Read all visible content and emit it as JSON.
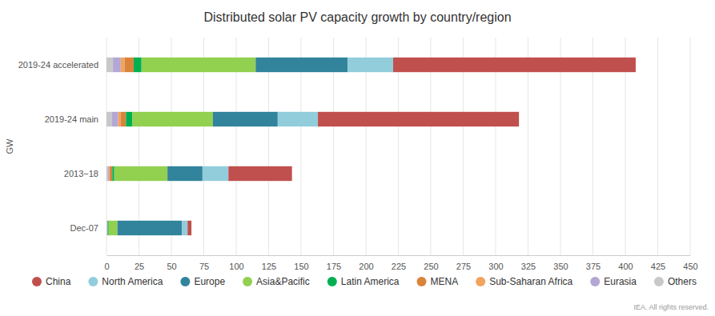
{
  "chart_data": {
    "type": "bar",
    "orientation": "horizontal",
    "stacked": true,
    "grid": true,
    "legend": "bottom",
    "title": "Distributed solar PV capacity growth by country/region",
    "ylabel": "GW",
    "annotations": [
      "IEA. All rights reserved."
    ],
    "categories": [
      "2019-24 accelerated",
      "2019-24 main",
      "2013−18",
      "Dec-07"
    ],
    "xlim": [
      0,
      450
    ],
    "xticks": [
      0,
      25,
      50,
      75,
      100,
      125,
      150,
      175,
      200,
      225,
      250,
      275,
      300,
      325,
      350,
      375,
      400,
      425,
      450
    ],
    "series": [
      {
        "name": "China",
        "color": "#c0504d",
        "values": [
          187,
          155,
          49,
          3
        ]
      },
      {
        "name": "North America",
        "color": "#92cddc",
        "values": [
          35,
          31,
          20,
          4.5
        ]
      },
      {
        "name": "Europe",
        "color": "#31849b",
        "values": [
          71,
          50,
          27,
          49.5
        ]
      },
      {
        "name": "Asia&Pacific",
        "color": "#92d050",
        "values": [
          88,
          62,
          41,
          6.8
        ]
      },
      {
        "name": "Latin America",
        "color": "#00b050",
        "values": [
          6,
          5,
          1.5,
          0.8
        ]
      },
      {
        "name": "MENA",
        "color": "#d9843b",
        "values": [
          7,
          4,
          2,
          0.2
        ]
      },
      {
        "name": "Sub-Saharan Africa",
        "color": "#f2a35e",
        "values": [
          3,
          2,
          0.5,
          0
        ]
      },
      {
        "name": "Eurasia",
        "color": "#b4a7d6",
        "values": [
          6,
          5,
          1,
          0.2
        ]
      },
      {
        "name": "Others",
        "color": "#c8c8c8",
        "values": [
          5,
          4,
          1,
          0.5
        ]
      }
    ]
  }
}
